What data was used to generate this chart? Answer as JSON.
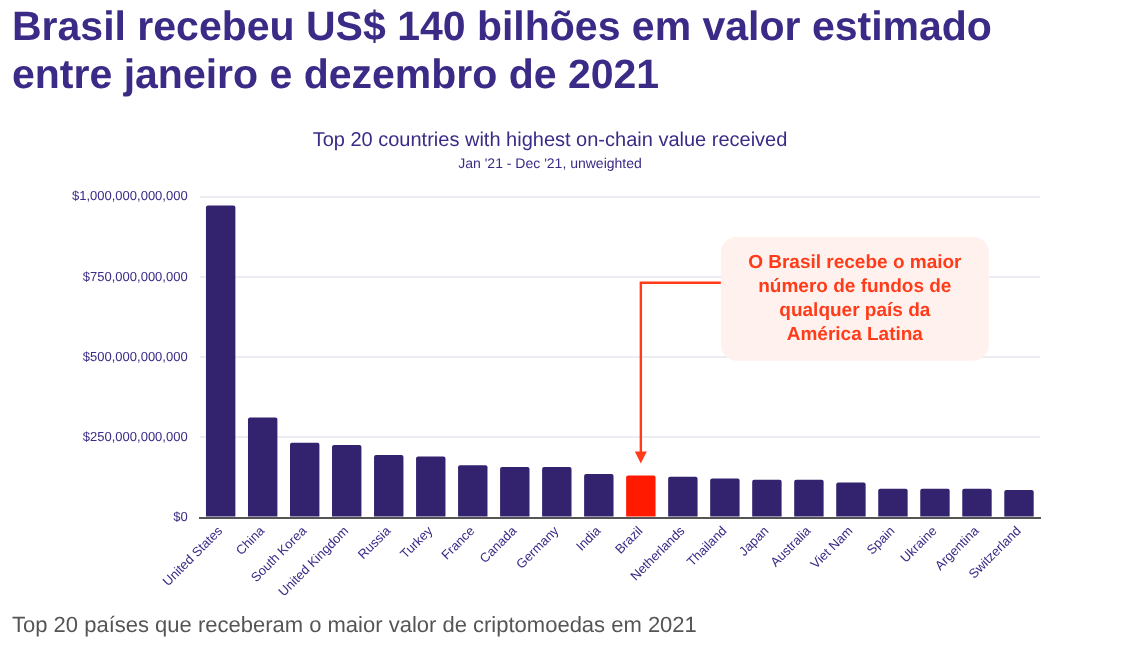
{
  "chart_data": {
    "type": "bar",
    "title": "Brasil recebeu US$ 140 bilhões em valor estimado entre janeiro e dezembro de 2021",
    "subtitle": "Top 20 countries with highest on-chain value received",
    "categories": [
      "United States",
      "China",
      "South Korea",
      "United Kingdom",
      "Russia",
      "Turkey",
      "France",
      "Canada",
      "Germany",
      "India",
      "Brazil",
      "Netherlands",
      "Thailand",
      "Japan",
      "Australia",
      "Viet Nam",
      "Spain",
      "Ukraine",
      "Argentina",
      "Switzerland"
    ],
    "values": [
      973000000000,
      312000000000,
      233000000000,
      226000000000,
      195000000000,
      190000000000,
      163000000000,
      158000000000,
      158000000000,
      136000000000,
      131000000000,
      127000000000,
      122000000000,
      118000000000,
      118000000000,
      109000000000,
      90000000000,
      90000000000,
      90000000000,
      86000000000
    ],
    "colors": [
      "#33236f",
      "#33236f",
      "#33236f",
      "#33236f",
      "#33236f",
      "#33236f",
      "#33236f",
      "#33236f",
      "#33236f",
      "#33236f",
      "#ff1a00",
      "#33236f",
      "#33236f",
      "#33236f",
      "#33236f",
      "#33236f",
      "#33236f",
      "#33236f",
      "#33236f",
      "#33236f"
    ],
    "ylim": [
      0,
      1000000000000
    ],
    "yticks": [
      {
        "value": 0,
        "label": "$0"
      },
      {
        "value": 250000000000,
        "label": "$250,000,000,000"
      },
      {
        "value": 500000000000,
        "label": "$500,000,000,000"
      },
      {
        "value": 750000000000,
        "label": "$750,000,000,000"
      },
      {
        "value": 1000000000000,
        "label": "$1,000,000,000,000"
      }
    ],
    "grid": "y",
    "legend": false,
    "annotations": [
      "Jan '21 - Dec '21, unweighted",
      "O Brasil recebe o maior número de fundos de qualquer país da América Latina",
      "Top 20 países que receberam o maior valor de criptomoedas em 2021"
    ]
  }
}
